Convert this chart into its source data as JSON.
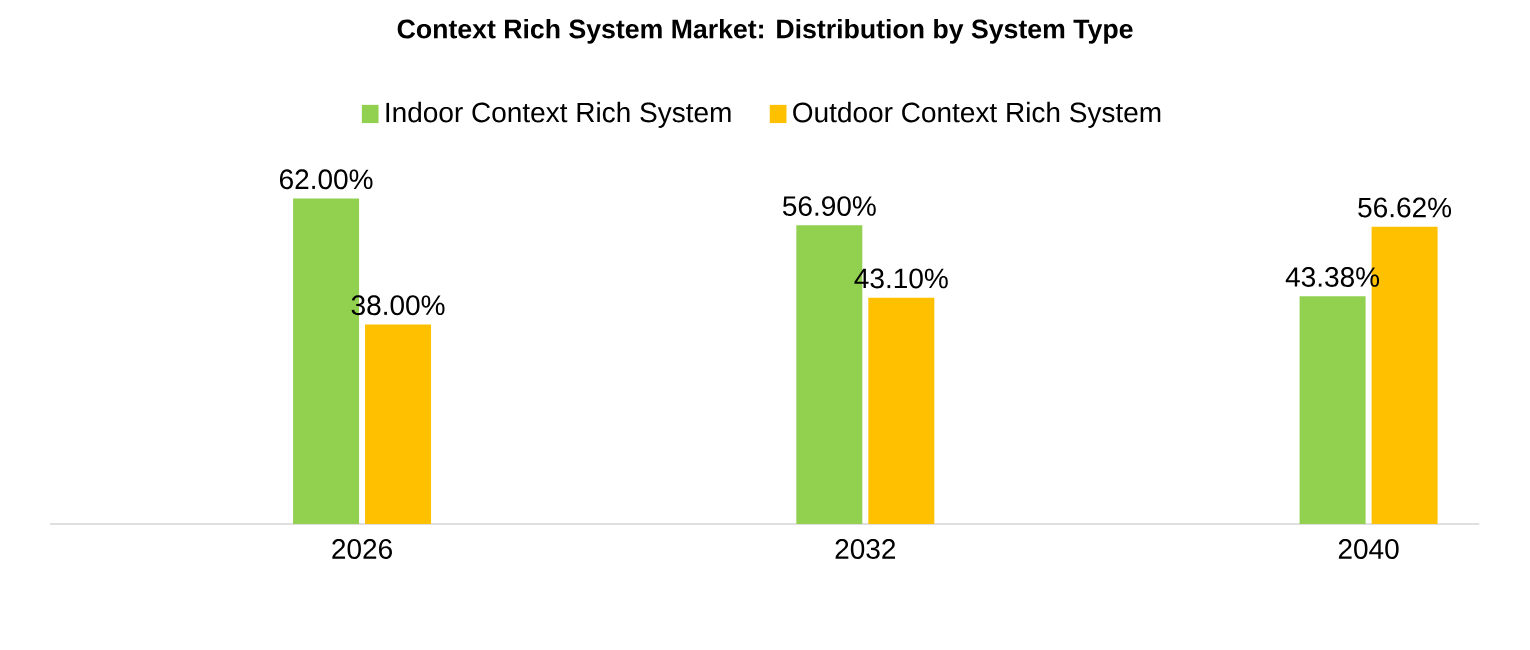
{
  "chart_data": {
    "type": "bar",
    "title": "Context Rich System Market: Distribution by System Type",
    "categories": [
      "2026",
      "2032",
      "2040"
    ],
    "legend": "top",
    "series": [
      {
        "name": "Indoor Context Rich System",
        "color": "#92d050",
        "values": [
          62.0,
          56.9,
          43.38
        ],
        "value_labels": [
          "62.00%",
          "56.90%",
          "43.38%"
        ]
      },
      {
        "name": "Outdoor Context Rich System",
        "color": "#ffc000",
        "values": [
          38.0,
          43.1,
          56.62
        ],
        "value_labels": [
          "38.00%",
          "43.10%",
          "56.62%"
        ]
      }
    ]
  }
}
